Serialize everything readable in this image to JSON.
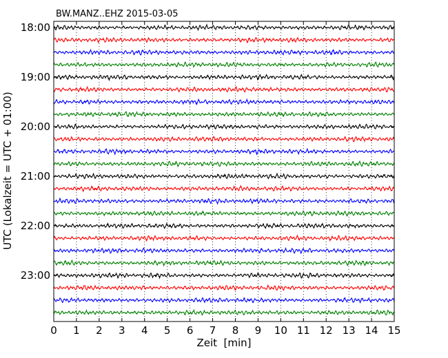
{
  "chart_data": {
    "type": "line",
    "title": "BW.MANZ..EHZ 2015-03-05",
    "xlabel": "Zeit  [min]",
    "ylabel": "UTC (Lokalzeit = UTC + 01:00)",
    "xlim": [
      0,
      15
    ],
    "x_ticks": [
      0,
      1,
      2,
      3,
      4,
      5,
      6,
      7,
      8,
      9,
      10,
      11,
      12,
      13,
      14,
      15
    ],
    "y_tick_labels": [
      "18:00",
      "19:00",
      "20:00",
      "21:00",
      "22:00",
      "23:00"
    ],
    "trace_start_times": [
      "18:00",
      "18:15",
      "18:30",
      "18:45",
      "19:00",
      "19:15",
      "19:30",
      "19:45",
      "20:00",
      "20:15",
      "20:30",
      "20:45",
      "21:00",
      "21:15",
      "21:30",
      "21:45",
      "22:00",
      "22:15",
      "22:30",
      "22:45",
      "23:00",
      "23:15",
      "23:30",
      "23:45"
    ],
    "trace_colors": [
      "#000000",
      "#ff0000",
      "#0000ff",
      "#008000"
    ],
    "grid": "x-dotted"
  }
}
